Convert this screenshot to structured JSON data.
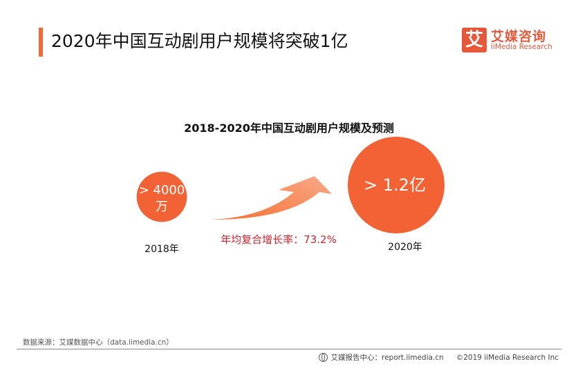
{
  "header": {
    "title": "2020年中国互动剧用户规模将突破1亿",
    "accent_color": "#f0693a"
  },
  "logo": {
    "icon_char": "艾",
    "name_cn": "艾媒咨询",
    "name_en": "iiMedia Research",
    "color": "#e5593a"
  },
  "chart_data": {
    "type": "bubble",
    "title": "2018-2020年中国互动剧用户规模及预测",
    "points": [
      {
        "year": "2018年",
        "label_line1": "> 4000",
        "label_line2": "万",
        "value": 40000000,
        "unit": "users",
        "qualifier": ">"
      },
      {
        "year": "2020年",
        "label_line1": "> 1.2亿",
        "label_line2": "",
        "value": 120000000,
        "unit": "users",
        "qualifier": ">"
      }
    ],
    "growth_arrow": {
      "label": "年均复合增长率：73.2%",
      "cagr_percent": 73.2
    },
    "colors": {
      "bubble": "#f26234",
      "arrow_start": "#f5702f",
      "arrow_end": "#f9a98a",
      "cagr_text": "#d2232a"
    }
  },
  "footer": {
    "source": "数据来源：艾媒数据中心（data.iimedia.cn）",
    "report_center": "艾媒报告中心：report.iimedia.cn",
    "copyright": "©2019  iiMedia Research  Inc"
  }
}
